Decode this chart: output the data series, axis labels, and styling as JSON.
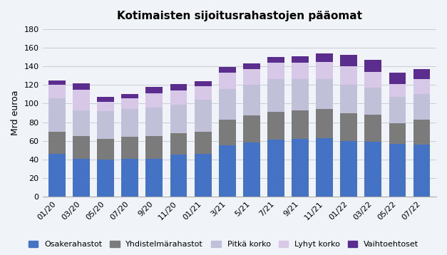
{
  "title": "Kotimaisten sijoitusrahastojen pääomat",
  "ylabel": "Mrd euroa",
  "categories": [
    "01/20",
    "03/20",
    "05/20",
    "07/20",
    "9/20",
    "11/20",
    "01/21",
    "3/21",
    "5/21",
    "7/21",
    "9/21",
    "11/21",
    "01/22",
    "03/22",
    "05/22",
    "07/22"
  ],
  "series": {
    "Osakerahastot": [
      46,
      41,
      40,
      41,
      41,
      45,
      46,
      55,
      58,
      61,
      62,
      63,
      60,
      59,
      57,
      56
    ],
    "Yhdistelmärahastot": [
      24,
      24,
      22,
      23,
      24,
      23,
      24,
      28,
      29,
      30,
      31,
      31,
      30,
      29,
      22,
      27
    ],
    "Pitkä korko": [
      36,
      28,
      30,
      30,
      31,
      31,
      34,
      33,
      33,
      35,
      33,
      32,
      30,
      29,
      28,
      27
    ],
    "Lyhyt korko": [
      14,
      22,
      10,
      12,
      15,
      15,
      15,
      17,
      17,
      18,
      18,
      19,
      20,
      17,
      14,
      16
    ],
    "Vaihtoehtoset": [
      5,
      7,
      5,
      4,
      7,
      7,
      5,
      6,
      6,
      6,
      7,
      9,
      12,
      13,
      12,
      11
    ]
  },
  "colors": {
    "Osakerahastot": "#4472C4",
    "Yhdistelmärahastot": "#7B7B7B",
    "Pitkä korko": "#C0C0D8",
    "Lyhyt korko": "#D8C8E8",
    "Vaihtoehtoset": "#5B2D8E"
  },
  "ylim": [
    0,
    180
  ],
  "yticks": [
    0,
    20,
    40,
    60,
    80,
    100,
    120,
    140,
    160,
    180
  ],
  "legend_labels": [
    "Osakerahastot",
    "Yhdistelmärahastot",
    "Pitkä korko",
    "Lyhyt korko",
    "Vaihtoehtoset"
  ],
  "background_color": "#f0f4f8",
  "grid_color": "#c8cdd4"
}
